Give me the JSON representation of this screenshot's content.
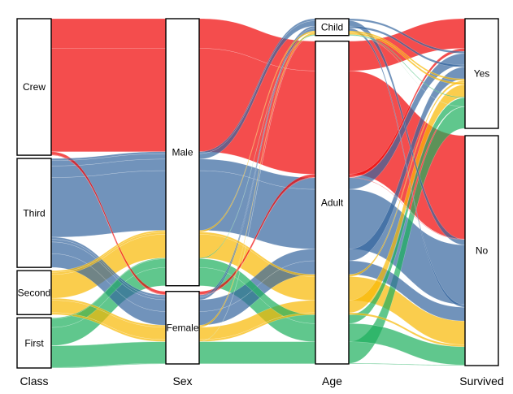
{
  "figure": {
    "title": ""
  },
  "chart_data": {
    "type": "alluvial",
    "title": "",
    "legend": "none",
    "grid": "off",
    "background": "#ffffff",
    "color_by": "Class",
    "colors": {
      "Crew": "#ef0101",
      "Third": "#34659e",
      "Second": "#f8b801",
      "First": "#1daf5c"
    },
    "fill_opacity": 0.7,
    "axes": [
      {
        "label": "Class",
        "strata": [
          "Crew",
          "Third",
          "Second",
          "First"
        ]
      },
      {
        "label": "Sex",
        "strata": [
          "Male",
          "Female"
        ]
      },
      {
        "label": "Age",
        "strata": [
          "Child",
          "Adult"
        ]
      },
      {
        "label": "Survived",
        "strata": [
          "Yes",
          "No"
        ]
      }
    ],
    "stratum_totals": {
      "Class": {
        "Crew": 885,
        "Third": 706,
        "Second": 285,
        "First": 325
      },
      "Sex": {
        "Male": 1731,
        "Female": 470
      },
      "Age": {
        "Child": 109,
        "Adult": 2092
      },
      "Survived": {
        "Yes": 711,
        "No": 1490
      }
    },
    "flows": [
      {
        "Class": "Crew",
        "Sex": "Male",
        "Age": "Adult",
        "Survived": "Yes",
        "freq": 192
      },
      {
        "Class": "Crew",
        "Sex": "Male",
        "Age": "Adult",
        "Survived": "No",
        "freq": 670
      },
      {
        "Class": "Crew",
        "Sex": "Female",
        "Age": "Adult",
        "Survived": "Yes",
        "freq": 20
      },
      {
        "Class": "Crew",
        "Sex": "Female",
        "Age": "Adult",
        "Survived": "No",
        "freq": 3
      },
      {
        "Class": "Third",
        "Sex": "Male",
        "Age": "Child",
        "Survived": "Yes",
        "freq": 13
      },
      {
        "Class": "Third",
        "Sex": "Male",
        "Age": "Child",
        "Survived": "No",
        "freq": 35
      },
      {
        "Class": "Third",
        "Sex": "Male",
        "Age": "Adult",
        "Survived": "Yes",
        "freq": 75
      },
      {
        "Class": "Third",
        "Sex": "Male",
        "Age": "Adult",
        "Survived": "No",
        "freq": 387
      },
      {
        "Class": "Third",
        "Sex": "Female",
        "Age": "Child",
        "Survived": "Yes",
        "freq": 14
      },
      {
        "Class": "Third",
        "Sex": "Female",
        "Age": "Child",
        "Survived": "No",
        "freq": 17
      },
      {
        "Class": "Third",
        "Sex": "Female",
        "Age": "Adult",
        "Survived": "Yes",
        "freq": 76
      },
      {
        "Class": "Third",
        "Sex": "Female",
        "Age": "Adult",
        "Survived": "No",
        "freq": 89
      },
      {
        "Class": "Second",
        "Sex": "Male",
        "Age": "Child",
        "Survived": "Yes",
        "freq": 11
      },
      {
        "Class": "Second",
        "Sex": "Male",
        "Age": "Adult",
        "Survived": "Yes",
        "freq": 14
      },
      {
        "Class": "Second",
        "Sex": "Male",
        "Age": "Adult",
        "Survived": "No",
        "freq": 154
      },
      {
        "Class": "Second",
        "Sex": "Female",
        "Age": "Child",
        "Survived": "Yes",
        "freq": 13
      },
      {
        "Class": "Second",
        "Sex": "Female",
        "Age": "Adult",
        "Survived": "Yes",
        "freq": 80
      },
      {
        "Class": "Second",
        "Sex": "Female",
        "Age": "Adult",
        "Survived": "No",
        "freq": 13
      },
      {
        "Class": "First",
        "Sex": "Male",
        "Age": "Child",
        "Survived": "Yes",
        "freq": 5
      },
      {
        "Class": "First",
        "Sex": "Male",
        "Age": "Adult",
        "Survived": "Yes",
        "freq": 57
      },
      {
        "Class": "First",
        "Sex": "Male",
        "Age": "Adult",
        "Survived": "No",
        "freq": 118
      },
      {
        "Class": "First",
        "Sex": "Female",
        "Age": "Child",
        "Survived": "Yes",
        "freq": 1
      },
      {
        "Class": "First",
        "Sex": "Female",
        "Age": "Adult",
        "Survived": "Yes",
        "freq": 140
      },
      {
        "Class": "First",
        "Sex": "Female",
        "Age": "Adult",
        "Survived": "No",
        "freq": 4
      }
    ]
  }
}
